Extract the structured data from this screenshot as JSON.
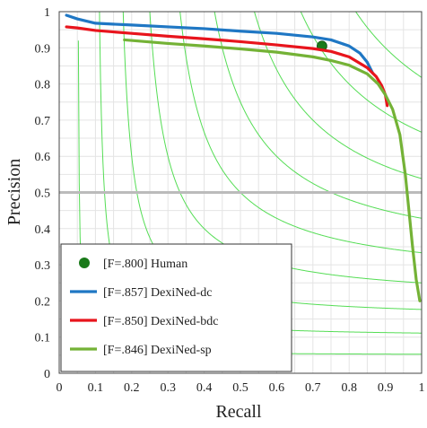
{
  "chart_data": {
    "type": "line",
    "xlabel": "Recall",
    "ylabel": "Precision",
    "xlim": [
      0,
      1
    ],
    "ylim": [
      0,
      1
    ],
    "xticks": [
      "0",
      "0.1",
      "0.2",
      "0.3",
      "0.4",
      "0.5",
      "0.6",
      "0.7",
      "0.8",
      "0.9",
      "1"
    ],
    "yticks": [
      "0",
      "0.1",
      "0.2",
      "0.3",
      "0.4",
      "0.5",
      "0.6",
      "0.7",
      "0.8",
      "0.9",
      "1"
    ],
    "grid": true,
    "legend_position": "bottom-left",
    "baseline": {
      "y": 0.5,
      "color": "#bbbbbb"
    },
    "iso_f_lines": {
      "color": "#55dd55",
      "values": [
        0.1,
        0.2,
        0.3,
        0.4,
        0.5,
        0.6,
        0.7,
        0.8,
        0.9
      ]
    },
    "series": [
      {
        "name": "[F=.800] Human",
        "kind": "point",
        "color": "#1a7a1a",
        "x": [
          0.725
        ],
        "y": [
          0.905
        ]
      },
      {
        "name": "[F=.857] DexiNed-dc",
        "kind": "line",
        "color": "#1f77c4",
        "x": [
          0.02,
          0.05,
          0.1,
          0.2,
          0.3,
          0.4,
          0.5,
          0.6,
          0.7,
          0.75,
          0.8,
          0.83,
          0.85,
          0.865
        ],
        "y": [
          0.99,
          0.98,
          0.968,
          0.963,
          0.958,
          0.953,
          0.946,
          0.94,
          0.93,
          0.922,
          0.905,
          0.885,
          0.86,
          0.83
        ]
      },
      {
        "name": "[F=.850] DexiNed-bdc",
        "kind": "line",
        "color": "#e8141c",
        "x": [
          0.02,
          0.05,
          0.1,
          0.2,
          0.3,
          0.4,
          0.5,
          0.6,
          0.7,
          0.75,
          0.8,
          0.85,
          0.875,
          0.89,
          0.9,
          0.905
        ],
        "y": [
          0.958,
          0.955,
          0.948,
          0.94,
          0.932,
          0.925,
          0.917,
          0.908,
          0.898,
          0.89,
          0.875,
          0.845,
          0.82,
          0.795,
          0.77,
          0.74
        ]
      },
      {
        "name": "[F=.846] DexiNed-sp",
        "kind": "line",
        "color": "#74b236",
        "x": [
          0.18,
          0.3,
          0.4,
          0.5,
          0.6,
          0.7,
          0.75,
          0.8,
          0.85,
          0.88,
          0.9,
          0.92,
          0.94,
          0.955,
          0.965,
          0.975,
          0.985,
          0.995
        ],
        "y": [
          0.922,
          0.912,
          0.905,
          0.897,
          0.888,
          0.875,
          0.865,
          0.852,
          0.828,
          0.8,
          0.77,
          0.73,
          0.66,
          0.55,
          0.45,
          0.35,
          0.26,
          0.2
        ]
      }
    ]
  }
}
